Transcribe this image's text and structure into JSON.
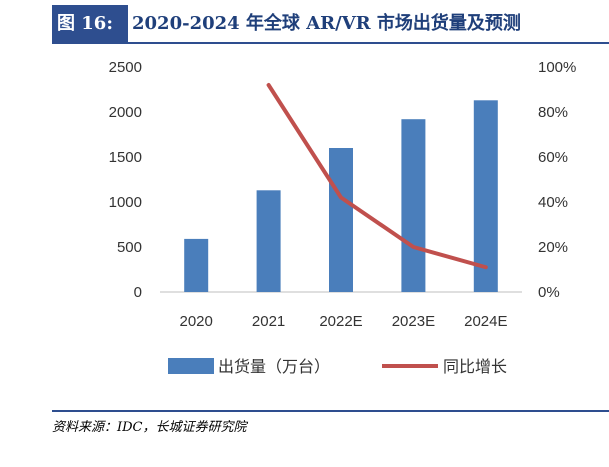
{
  "header": {
    "label": "图 16:",
    "title": "2020-2024 年全球 AR/VR 市场出货量及预测"
  },
  "chart_data": {
    "type": "bar",
    "categories": [
      "2020",
      "2021",
      "2022E",
      "2023E",
      "2024E"
    ],
    "series": [
      {
        "name": "出货量（万台）",
        "kind": "bar",
        "axis": "left",
        "color": "#4a7ebb",
        "values": [
          590,
          1130,
          1600,
          1920,
          2130
        ]
      },
      {
        "name": "同比增长",
        "kind": "line",
        "axis": "right",
        "color": "#c0504d",
        "values": [
          null,
          92,
          42,
          20,
          11
        ]
      }
    ],
    "y_left": {
      "ylim": [
        0,
        2500
      ],
      "ticks": [
        "0",
        "500",
        "1000",
        "1500",
        "2000",
        "2500"
      ]
    },
    "y_right": {
      "ylim": [
        0,
        100
      ],
      "ticks": [
        "0%",
        "20%",
        "40%",
        "60%",
        "80%",
        "100%"
      ]
    },
    "grid": false,
    "legend": "bottom"
  },
  "source": "资料来源：IDC，长城证券研究院"
}
